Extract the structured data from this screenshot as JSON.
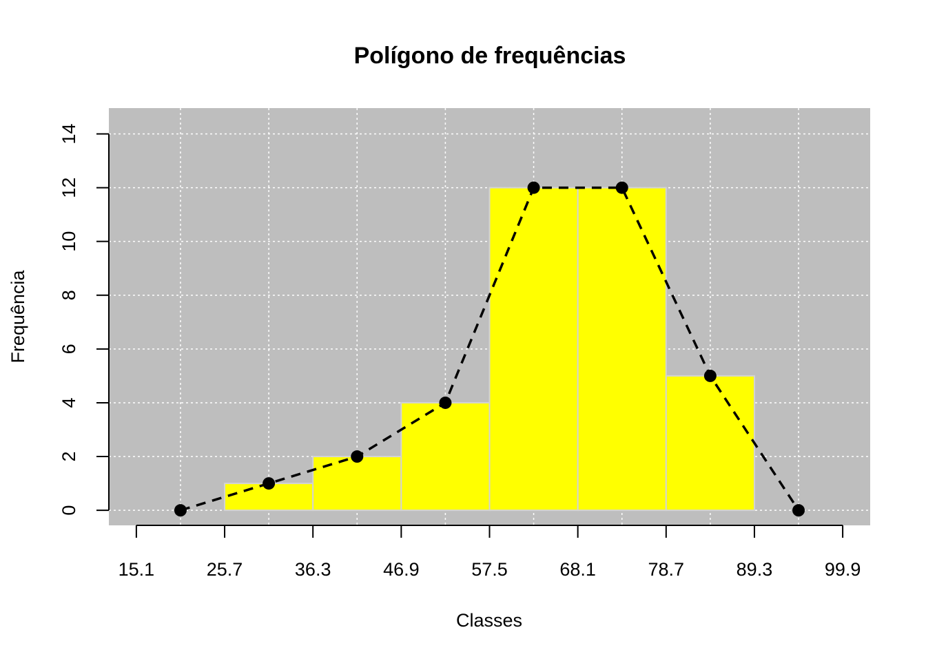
{
  "chart_data": {
    "type": "bar",
    "title": "Polígono de frequências",
    "xlabel": "Classes",
    "ylabel": "Frequência",
    "x_ticks": [
      15.1,
      25.7,
      36.3,
      46.9,
      57.5,
      68.1,
      78.7,
      89.3,
      99.9
    ],
    "y_ticks": [
      0,
      2,
      4,
      6,
      8,
      10,
      12,
      14
    ],
    "xlim": [
      11.8,
      103.2
    ],
    "ylim": [
      -0.56,
      14.96
    ],
    "grid": true,
    "bins": [
      {
        "from": 25.7,
        "to": 36.3,
        "value": 1
      },
      {
        "from": 36.3,
        "to": 46.9,
        "value": 2
      },
      {
        "from": 46.9,
        "to": 57.5,
        "value": 4
      },
      {
        "from": 57.5,
        "to": 68.1,
        "value": 12
      },
      {
        "from": 68.1,
        "to": 78.7,
        "value": 12
      },
      {
        "from": 78.7,
        "to": 89.3,
        "value": 5
      }
    ],
    "polygon": {
      "x": [
        20.4,
        31.0,
        41.6,
        52.2,
        62.8,
        73.4,
        84.0,
        94.6
      ],
      "y": [
        0,
        1,
        2,
        4,
        12,
        12,
        5,
        0
      ]
    },
    "colors": {
      "panel": "#bebebe",
      "bar": "#ffff00",
      "bar_border": "#d3d3d3",
      "line": "#000000",
      "grid": "#ffffff"
    }
  }
}
